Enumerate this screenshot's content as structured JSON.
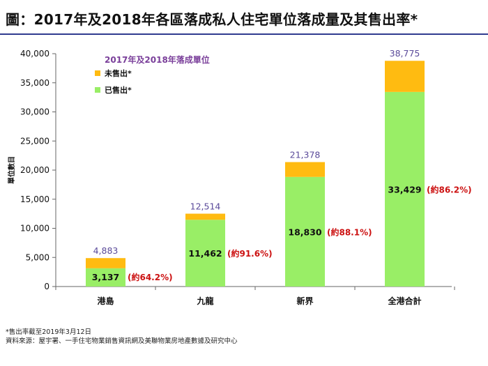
{
  "title": "圖：2017年及2018年各區落成私人住宅單位落成量及其售出率*",
  "chart_data": {
    "type": "bar",
    "stacked": true,
    "categories": [
      "港島",
      "九龍",
      "新界",
      "全港合計"
    ],
    "series": [
      {
        "name": "已售出*",
        "color": "#99ee66",
        "values": [
          3137,
          11462,
          18830,
          33429
        ]
      },
      {
        "name": "未售出*",
        "color": "#ffbb11",
        "values": [
          1746,
          1052,
          2548,
          5346
        ]
      }
    ],
    "totals": [
      4883,
      12514,
      21378,
      38775
    ],
    "total_labels": [
      "4,883",
      "12,514",
      "21,378",
      "38,775"
    ],
    "sold_labels": [
      "3,137",
      "11,462",
      "18,830",
      "33,429"
    ],
    "rate_labels": [
      "(約64.2%)",
      "(約91.6%)",
      "(約88.1%)",
      "(約86.2%)"
    ],
    "legend_title": "2017年及2018年落成單位",
    "ylabel": "單位數目",
    "xlabel": "",
    "ylim": [
      0,
      40000
    ],
    "yticks": [
      0,
      5000,
      10000,
      15000,
      20000,
      25000,
      30000,
      35000,
      40000
    ],
    "ytick_labels": [
      "0",
      "5,000",
      "10,000",
      "15,000",
      "20,000",
      "25,000",
      "30,000",
      "35,000",
      "40,000"
    ],
    "grid": false,
    "legend_position": "top-left",
    "colors": {
      "sold": "#99ee66",
      "unsold": "#ffbb11",
      "total_label": "#5a4a9a",
      "rate_label": "#cc1111",
      "legend_title": "#7a3f9a",
      "title_rule": "#2f3b8f"
    }
  },
  "footnotes": [
    "*售出率截至2019年3月12日",
    "資料來源：屋宇署、一手住宅物業銷售資訊網及美聯物業房地產數據及研究中心"
  ]
}
